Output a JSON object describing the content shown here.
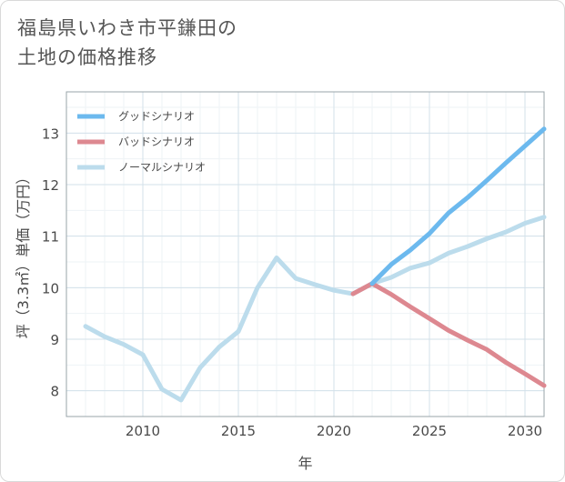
{
  "title_lines": [
    "福島県いわき市平鎌田の",
    "土地の価格推移"
  ],
  "chart_data": {
    "type": "line",
    "xlabel": "年",
    "ylabel": "坪（3.3㎡）単価（万円）",
    "xlim": [
      2006,
      2031
    ],
    "ylim": [
      7.5,
      13.8
    ],
    "xticks": [
      2010,
      2015,
      2020,
      2025,
      2030
    ],
    "yticks": [
      8,
      9,
      10,
      11,
      12,
      13
    ],
    "grid": true,
    "legend_position": "top-left",
    "series": [
      {
        "name": "グッドシナリオ",
        "color": "#6cb9ee",
        "x": [
          2022,
          2023,
          2024,
          2025,
          2026,
          2027,
          2028,
          2029,
          2030,
          2031
        ],
        "y": [
          10.08,
          10.45,
          10.73,
          11.05,
          11.45,
          11.75,
          12.08,
          12.42,
          12.75,
          13.08
        ]
      },
      {
        "name": "バッドシナリオ",
        "color": "#dd8890",
        "x": [
          2021,
          2022,
          2023,
          2024,
          2025,
          2026,
          2027,
          2028,
          2029,
          2030,
          2031
        ],
        "y": [
          9.88,
          10.08,
          9.87,
          9.63,
          9.4,
          9.17,
          8.98,
          8.8,
          8.55,
          8.33,
          8.1
        ]
      },
      {
        "name": "ノーマルシナリオ",
        "color": "#bcdcec",
        "x": [
          2007,
          2008,
          2009,
          2010,
          2011,
          2012,
          2013,
          2014,
          2015,
          2016,
          2017,
          2018,
          2019,
          2020,
          2021,
          2022,
          2023,
          2024,
          2025,
          2026,
          2027,
          2028,
          2029,
          2030,
          2031
        ],
        "y": [
          9.25,
          9.05,
          8.9,
          8.7,
          8.03,
          7.82,
          8.45,
          8.85,
          9.15,
          10.0,
          10.58,
          10.18,
          10.06,
          9.95,
          9.88,
          10.08,
          10.2,
          10.38,
          10.48,
          10.67,
          10.8,
          10.95,
          11.08,
          11.25,
          11.37
        ]
      }
    ]
  }
}
